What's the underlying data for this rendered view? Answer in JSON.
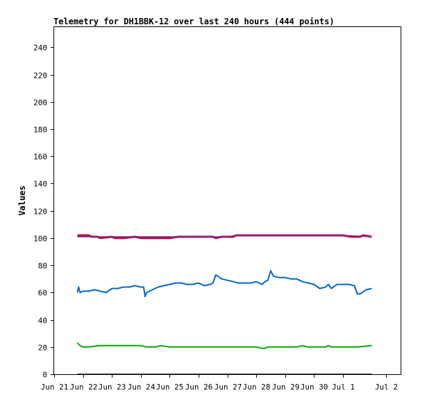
{
  "chart_data": {
    "type": "line",
    "title": "Telemetry for DH1BBK-12 over last 240 hours (444 points)",
    "xlabel": "",
    "ylabel": "Values",
    "x_axis": "days since Jun 21 00:00",
    "xlim": [
      0,
      12
    ],
    "ylim": [
      0,
      255
    ],
    "x_ticks": [
      {
        "label": "Jun 21",
        "value": 0
      },
      {
        "label": "Jun 22",
        "value": 1
      },
      {
        "label": "Jun 23",
        "value": 2
      },
      {
        "label": "Jun 24",
        "value": 3
      },
      {
        "label": "Jun 25",
        "value": 4
      },
      {
        "label": "Jun 26",
        "value": 5
      },
      {
        "label": "Jun 27",
        "value": 6
      },
      {
        "label": "Jun 28",
        "value": 7
      },
      {
        "label": "Jun 29",
        "value": 8
      },
      {
        "label": "Jun 30",
        "value": 9
      },
      {
        "label": "Jul 1",
        "value": 10
      },
      {
        "label": "Jul 2",
        "value": 11.5
      }
    ],
    "y_ticks": [
      0,
      20,
      40,
      60,
      80,
      100,
      120,
      140,
      160,
      180,
      200,
      220,
      240
    ],
    "grid": false,
    "series": [
      {
        "color": "#cc0033",
        "stroke_width": 3,
        "x": [
          0.8,
          1.2,
          1.3,
          1.5,
          1.6,
          2.0,
          2.1,
          2.4,
          2.8,
          3.0,
          3.5,
          4.0,
          4.3,
          5.0,
          5.5,
          5.6,
          5.8,
          6.2,
          6.3,
          7.0,
          8.0,
          9.0,
          10.0,
          10.3,
          10.6,
          10.7,
          11.0
        ],
        "values": [
          102,
          102,
          101,
          101,
          100,
          101,
          100,
          100,
          101,
          100,
          100,
          100,
          101,
          101,
          101,
          100,
          101,
          101,
          102,
          102,
          102,
          102,
          102,
          101,
          101,
          102,
          101
        ]
      },
      {
        "color": "#663399",
        "stroke_width": 1.5,
        "x": [
          0.8,
          2.0,
          3.0,
          4.0,
          5.0,
          6.0,
          6.3,
          7.0,
          8.0,
          9.0,
          10.0,
          11.0
        ],
        "values": [
          101,
          101,
          101,
          101,
          101,
          101,
          102,
          102,
          102,
          102,
          102,
          101
        ]
      },
      {
        "color": "#0066cc",
        "stroke_width": 2,
        "x": [
          0.8,
          0.85,
          0.9,
          1.0,
          1.2,
          1.4,
          1.6,
          1.8,
          2.0,
          2.2,
          2.4,
          2.6,
          2.8,
          3.0,
          3.1,
          3.15,
          3.2,
          3.4,
          3.6,
          3.8,
          4.0,
          4.2,
          4.4,
          4.6,
          4.8,
          5.0,
          5.2,
          5.4,
          5.5,
          5.6,
          5.8,
          6.0,
          6.2,
          6.4,
          6.6,
          6.8,
          7.0,
          7.2,
          7.3,
          7.4,
          7.5,
          7.6,
          7.8,
          8.0,
          8.2,
          8.4,
          8.6,
          8.8,
          9.0,
          9.2,
          9.4,
          9.5,
          9.6,
          9.8,
          10.0,
          10.2,
          10.4,
          10.5,
          10.6,
          10.8,
          11.0
        ],
        "values": [
          60,
          64,
          60,
          61,
          61,
          62,
          61,
          60,
          63,
          63,
          64,
          64,
          65,
          64,
          64,
          57,
          60,
          62,
          64,
          65,
          66,
          67,
          67,
          66,
          66,
          67,
          65,
          66,
          67,
          73,
          70,
          69,
          68,
          67,
          67,
          67,
          68,
          66,
          68,
          69,
          76,
          72,
          71,
          71,
          70,
          70,
          68,
          67,
          66,
          63,
          64,
          66,
          63,
          66,
          66,
          66,
          65,
          59,
          59,
          62,
          63
        ]
      },
      {
        "color": "#00aa00",
        "stroke_width": 2,
        "x": [
          0.8,
          0.9,
          1.0,
          1.2,
          1.6,
          2.0,
          2.4,
          2.8,
          3.0,
          3.2,
          3.5,
          3.7,
          4.0,
          4.5,
          5.0,
          5.5,
          6.0,
          6.5,
          7.0,
          7.2,
          7.3,
          7.4,
          7.5,
          7.6,
          8.0,
          8.2,
          8.4,
          8.6,
          8.8,
          9.0,
          9.4,
          9.5,
          9.6,
          10.0,
          10.5,
          11.0
        ],
        "values": [
          23,
          21,
          20,
          20,
          21,
          21,
          21,
          21,
          21,
          20,
          20,
          21,
          20,
          20,
          20,
          20,
          20,
          20,
          20,
          19,
          19,
          20,
          20,
          20,
          20,
          20,
          20,
          21,
          20,
          20,
          20,
          21,
          20,
          20,
          20,
          21
        ]
      },
      {
        "color": "#000000",
        "stroke_width": 1.5,
        "x": [
          0.8,
          11.0
        ],
        "values": [
          0,
          0
        ]
      }
    ]
  }
}
